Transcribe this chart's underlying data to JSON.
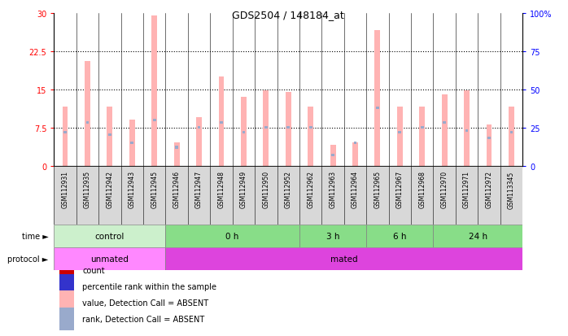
{
  "title": "GDS2504 / 148184_at",
  "samples": [
    "GSM112931",
    "GSM112935",
    "GSM112942",
    "GSM112943",
    "GSM112945",
    "GSM112946",
    "GSM112947",
    "GSM112948",
    "GSM112949",
    "GSM112950",
    "GSM112952",
    "GSM112962",
    "GSM112963",
    "GSM112964",
    "GSM112965",
    "GSM112967",
    "GSM112968",
    "GSM112970",
    "GSM112971",
    "GSM112972",
    "GSM113345"
  ],
  "absent_values": [
    11.5,
    20.5,
    11.5,
    9.0,
    29.5,
    4.5,
    9.5,
    17.5,
    13.5,
    14.8,
    14.5,
    11.5,
    4.0,
    4.5,
    26.5,
    11.5,
    11.5,
    14.0,
    14.8,
    8.0,
    11.5
  ],
  "absent_ranks_pct": [
    22,
    28,
    20,
    15,
    30,
    12,
    25,
    28,
    22,
    25,
    25,
    25,
    7,
    15,
    38,
    22,
    25,
    28,
    23,
    18,
    22
  ],
  "ylim": [
    0,
    30
  ],
  "yticks_left": [
    0,
    7.5,
    15,
    22.5,
    30
  ],
  "ytick_labels_left": [
    "0",
    "7.5",
    "15",
    "22.5",
    "30"
  ],
  "yticks_right": [
    0,
    25,
    50,
    75,
    100
  ],
  "ytick_labels_right": [
    "0",
    "25",
    "50",
    "75",
    "100%"
  ],
  "bar_color": "#ffb3b3",
  "rank_color": "#99aacc",
  "time_groups": [
    {
      "label": "control",
      "start": 0,
      "end": 5,
      "color": "#ccf0cc"
    },
    {
      "label": "0 h",
      "start": 5,
      "end": 11,
      "color": "#88dd88"
    },
    {
      "label": "3 h",
      "start": 11,
      "end": 14,
      "color": "#88dd88"
    },
    {
      "label": "6 h",
      "start": 14,
      "end": 17,
      "color": "#88dd88"
    },
    {
      "label": "24 h",
      "start": 17,
      "end": 21,
      "color": "#88dd88"
    }
  ],
  "protocol_groups": [
    {
      "label": "unmated",
      "start": 0,
      "end": 5,
      "color": "#ff88ff"
    },
    {
      "label": "mated",
      "start": 5,
      "end": 21,
      "color": "#dd44dd"
    }
  ],
  "legend_items": [
    {
      "label": "count",
      "color": "#cc0000"
    },
    {
      "label": "percentile rank within the sample",
      "color": "#3333cc"
    },
    {
      "label": "value, Detection Call = ABSENT",
      "color": "#ffb3b3"
    },
    {
      "label": "rank, Detection Call = ABSENT",
      "color": "#99aacc"
    }
  ],
  "fig_width": 6.98,
  "fig_height": 4.14,
  "dpi": 100
}
